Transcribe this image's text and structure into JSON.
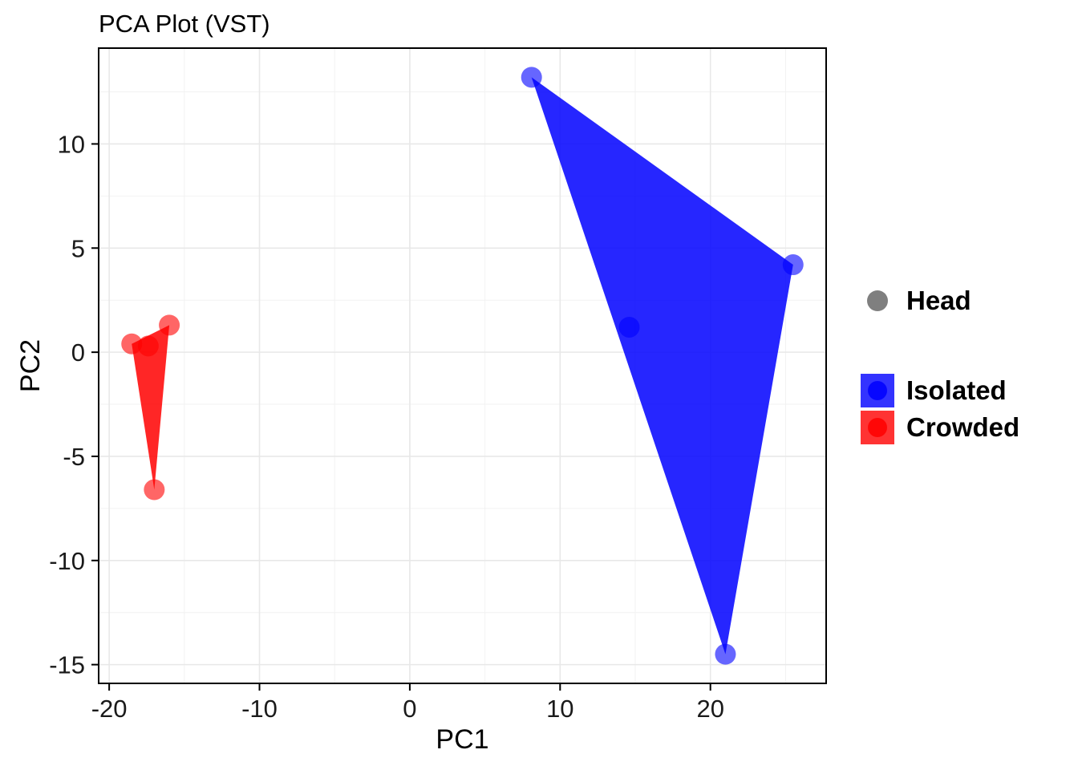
{
  "chart_data": {
    "type": "scatter",
    "title": "PCA Plot (VST)",
    "xlabel": "PC1",
    "ylabel": "PC2",
    "xlim": [
      -20.7,
      27.7
    ],
    "ylim": [
      -15.9,
      14.6
    ],
    "xticks": [
      -20,
      -10,
      0,
      10,
      20
    ],
    "yticks": [
      -15,
      -10,
      -5,
      0,
      5,
      10
    ],
    "grid": "major+minor",
    "legend_position": "right",
    "panel_background": "#FFFFFF",
    "grid_major_color": "#E8E8E8",
    "grid_minor_color": "#F2F2F2",
    "panel_border_color": "#000000",
    "tick_label_color": "#1A1A1A",
    "series": [
      {
        "name": "Isolated",
        "color": "#0000FF",
        "shape": "circle",
        "point_opacity": 0.6,
        "hull_opacity": 0.85,
        "points": [
          [
            8.1,
            13.2
          ],
          [
            25.5,
            4.2
          ],
          [
            14.6,
            1.2
          ],
          [
            21.0,
            -14.5
          ]
        ],
        "hull": [
          [
            8.1,
            13.2
          ],
          [
            25.5,
            4.2
          ],
          [
            21.0,
            -14.5
          ]
        ]
      },
      {
        "name": "Crowded",
        "color": "#FF0000",
        "shape": "circle",
        "point_opacity": 0.6,
        "hull_opacity": 0.85,
        "points": [
          [
            -18.5,
            0.4
          ],
          [
            -17.4,
            0.3
          ],
          [
            -16.0,
            1.3
          ],
          [
            -17.0,
            -6.6
          ]
        ],
        "hull": [
          [
            -18.5,
            0.4
          ],
          [
            -16.0,
            1.3
          ],
          [
            -17.0,
            -6.6
          ]
        ]
      }
    ]
  },
  "legend": {
    "head": {
      "label": "Head",
      "color": "#7F7F7F"
    },
    "isolated": {
      "label": "Isolated",
      "color": "#0000FF"
    },
    "crowded": {
      "label": "Crowded",
      "color": "#FF0000"
    }
  }
}
